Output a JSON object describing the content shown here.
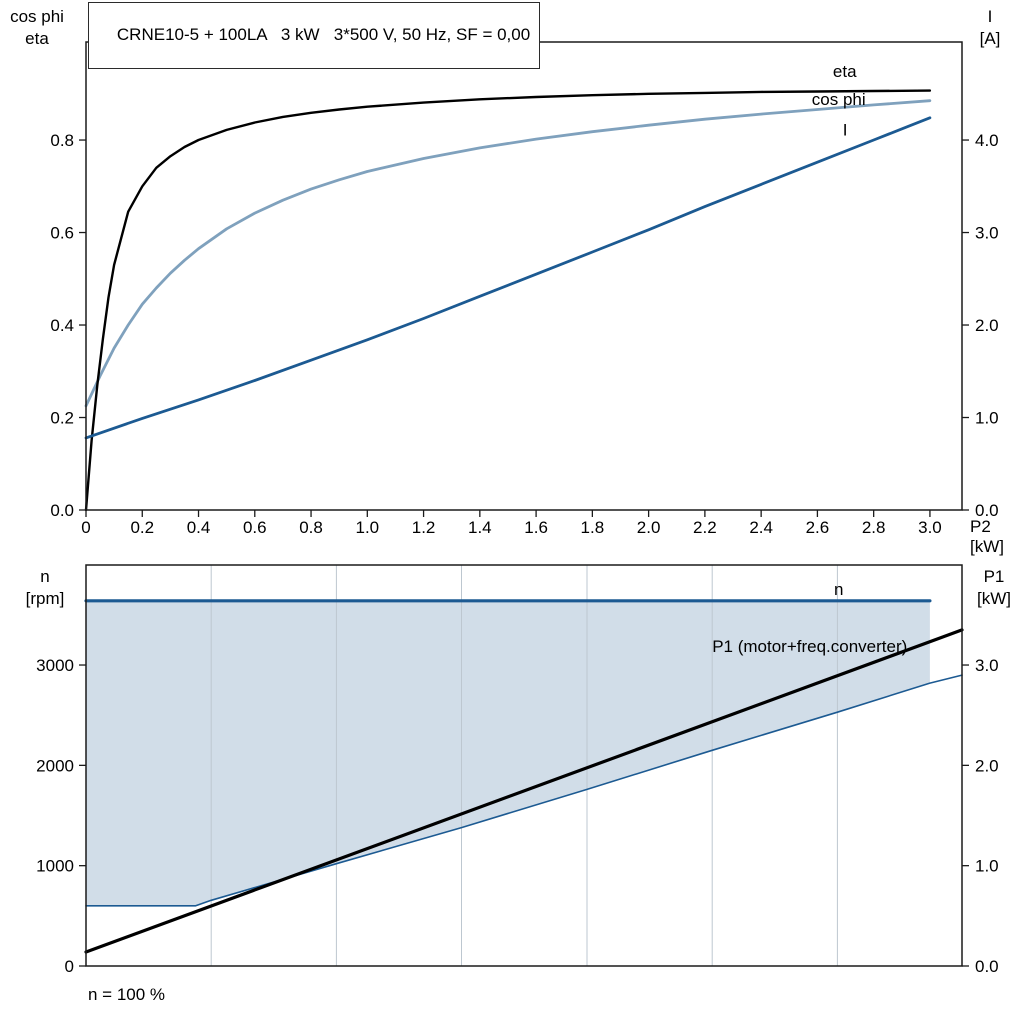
{
  "colors": {
    "black": "#000000",
    "dark_blue": "#1c5a92",
    "steel_blue": "#7fa1bd",
    "area_fill": "#ccd9e6",
    "grid": "#bdc7d0",
    "frame": "#1a1a1a"
  },
  "chart_data": [
    {
      "type": "line",
      "title": "CRNE10-5 + 100LA   3 kW   3*500 V, 50 Hz, SF = 0,00",
      "x_axis": {
        "label": "P2 [kW]",
        "min": 0,
        "max": 3.114,
        "tick_values": [
          0,
          0.2,
          0.4,
          0.6,
          0.8,
          1.0,
          1.2,
          1.4,
          1.6,
          1.8,
          2.0,
          2.2,
          2.4,
          2.6,
          2.8,
          3.0
        ],
        "tick_labels": [
          "0",
          "0.2",
          "0.4",
          "0.6",
          "0.8",
          "1.0",
          "1.2",
          "1.4",
          "1.6",
          "1.8",
          "2.0",
          "2.2",
          "2.4",
          "2.6",
          "2.8",
          "3.0"
        ]
      },
      "y_left": {
        "label_lines": [
          "cos phi",
          "eta"
        ],
        "min": 0,
        "max": 1.012,
        "tick_values": [
          0,
          0.2,
          0.4,
          0.6,
          0.8
        ],
        "tick_labels": [
          "0.0",
          "0.2",
          "0.4",
          "0.6",
          "0.8"
        ]
      },
      "y_right": {
        "label_lines": [
          "I",
          "[A]"
        ],
        "min": 0,
        "max": 5.06,
        "tick_values": [
          0,
          1,
          2,
          3,
          4
        ],
        "tick_labels": [
          "0.0",
          "1.0",
          "2.0",
          "3.0",
          "4.0"
        ]
      },
      "series": [
        {
          "name": "cos_phi",
          "axis": "left",
          "color": "#7fa1bd",
          "width": 2.8,
          "label": {
            "text": "cos phi",
            "x": 2.58,
            "y": 0.876
          },
          "points": [
            [
              0,
              0.225
            ],
            [
              0.05,
              0.29
            ],
            [
              0.1,
              0.35
            ],
            [
              0.15,
              0.4
            ],
            [
              0.2,
              0.445
            ],
            [
              0.25,
              0.48
            ],
            [
              0.3,
              0.512
            ],
            [
              0.35,
              0.54
            ],
            [
              0.4,
              0.565
            ],
            [
              0.5,
              0.608
            ],
            [
              0.6,
              0.642
            ],
            [
              0.7,
              0.67
            ],
            [
              0.8,
              0.694
            ],
            [
              0.9,
              0.714
            ],
            [
              1.0,
              0.732
            ],
            [
              1.2,
              0.76
            ],
            [
              1.4,
              0.783
            ],
            [
              1.6,
              0.802
            ],
            [
              1.8,
              0.818
            ],
            [
              2.0,
              0.832
            ],
            [
              2.2,
              0.845
            ],
            [
              2.4,
              0.856
            ],
            [
              2.6,
              0.866
            ],
            [
              2.8,
              0.876
            ],
            [
              3.0,
              0.885
            ]
          ]
        },
        {
          "name": "eta",
          "axis": "left",
          "color": "#000000",
          "width": 2.4,
          "label": {
            "text": "eta",
            "x": 2.655,
            "y": 0.936
          },
          "points": [
            [
              0,
              0.0
            ],
            [
              0.02,
              0.15
            ],
            [
              0.04,
              0.27
            ],
            [
              0.06,
              0.37
            ],
            [
              0.08,
              0.46
            ],
            [
              0.1,
              0.53
            ],
            [
              0.15,
              0.645
            ],
            [
              0.2,
              0.7
            ],
            [
              0.25,
              0.74
            ],
            [
              0.3,
              0.765
            ],
            [
              0.35,
              0.785
            ],
            [
              0.4,
              0.8
            ],
            [
              0.5,
              0.822
            ],
            [
              0.6,
              0.838
            ],
            [
              0.7,
              0.85
            ],
            [
              0.8,
              0.859
            ],
            [
              0.9,
              0.866
            ],
            [
              1.0,
              0.872
            ],
            [
              1.2,
              0.881
            ],
            [
              1.4,
              0.888
            ],
            [
              1.6,
              0.893
            ],
            [
              1.8,
              0.897
            ],
            [
              2.0,
              0.9
            ],
            [
              2.2,
              0.902
            ],
            [
              2.4,
              0.904
            ],
            [
              2.6,
              0.905
            ],
            [
              2.8,
              0.906
            ],
            [
              3.0,
              0.907
            ]
          ]
        },
        {
          "name": "I",
          "axis": "right",
          "color": "#1c5a92",
          "width": 2.8,
          "label": {
            "text": "I",
            "x": 2.69,
            "y": 4.05
          },
          "points": [
            [
              0,
              0.78
            ],
            [
              0.2,
              0.99
            ],
            [
              0.4,
              1.19
            ],
            [
              0.6,
              1.4
            ],
            [
              0.8,
              1.62
            ],
            [
              1.0,
              1.84
            ],
            [
              1.2,
              2.07
            ],
            [
              1.4,
              2.31
            ],
            [
              1.6,
              2.55
            ],
            [
              1.8,
              2.79
            ],
            [
              2.0,
              3.03
            ],
            [
              2.2,
              3.28
            ],
            [
              2.4,
              3.52
            ],
            [
              2.6,
              3.76
            ],
            [
              2.8,
              4.0
            ],
            [
              3.0,
              4.24
            ]
          ]
        }
      ]
    },
    {
      "type": "line_area",
      "x_axis": {
        "label": "",
        "min": 0,
        "max": 3.114,
        "tick_values": [],
        "tick_labels": []
      },
      "y_left": {
        "label_lines": [
          "n",
          "[rpm]"
        ],
        "min": 0,
        "max": 3997,
        "tick_values": [
          0,
          1000,
          2000,
          3000
        ],
        "tick_labels": [
          "0",
          "1000",
          "2000",
          "3000"
        ]
      },
      "y_right": {
        "label_lines": [
          "P1",
          "[kW]"
        ],
        "min": 0,
        "max": 3.997,
        "tick_values": [
          0,
          1,
          2,
          3
        ],
        "tick_labels": [
          "0.0",
          "1.0",
          "2.0",
          "3.0"
        ]
      },
      "gridlines_x": [
        0.445,
        0.89,
        1.335,
        1.781,
        2.226,
        2.671
      ],
      "area": {
        "top": "n",
        "bottom": "P1_pump",
        "x_end": 3.0,
        "color": "#ccd9e6",
        "opacity": 0.9
      },
      "footer": "n = 100 %",
      "series": [
        {
          "name": "n",
          "axis": "left",
          "color": "#1c5a92",
          "width": 3.2,
          "label": {
            "text": "n",
            "x": 2.659,
            "y": 3698
          },
          "points": [
            [
              0,
              3640
            ],
            [
              3.0,
              3640
            ]
          ]
        },
        {
          "name": "P1_pump",
          "axis": "right",
          "color": "#1c5a92",
          "width": 1.6,
          "points": [
            [
              0,
              0.6
            ],
            [
              0.39,
              0.6
            ],
            [
              0.445,
              0.655
            ],
            [
              0.89,
              1.02
            ],
            [
              1.335,
              1.38
            ],
            [
              1.781,
              1.76
            ],
            [
              2.226,
              2.15
            ],
            [
              2.671,
              2.53
            ],
            [
              3.0,
              2.82
            ],
            [
              3.114,
              2.9
            ]
          ]
        },
        {
          "name": "P1_total",
          "axis": "right",
          "color": "#000000",
          "width": 3.2,
          "label": {
            "text": "P1 (motor+freq.converter)",
            "x": 2.226,
            "y": 3.13
          },
          "points": [
            [
              0,
              0.14
            ],
            [
              3.114,
              3.35
            ]
          ]
        }
      ]
    }
  ]
}
